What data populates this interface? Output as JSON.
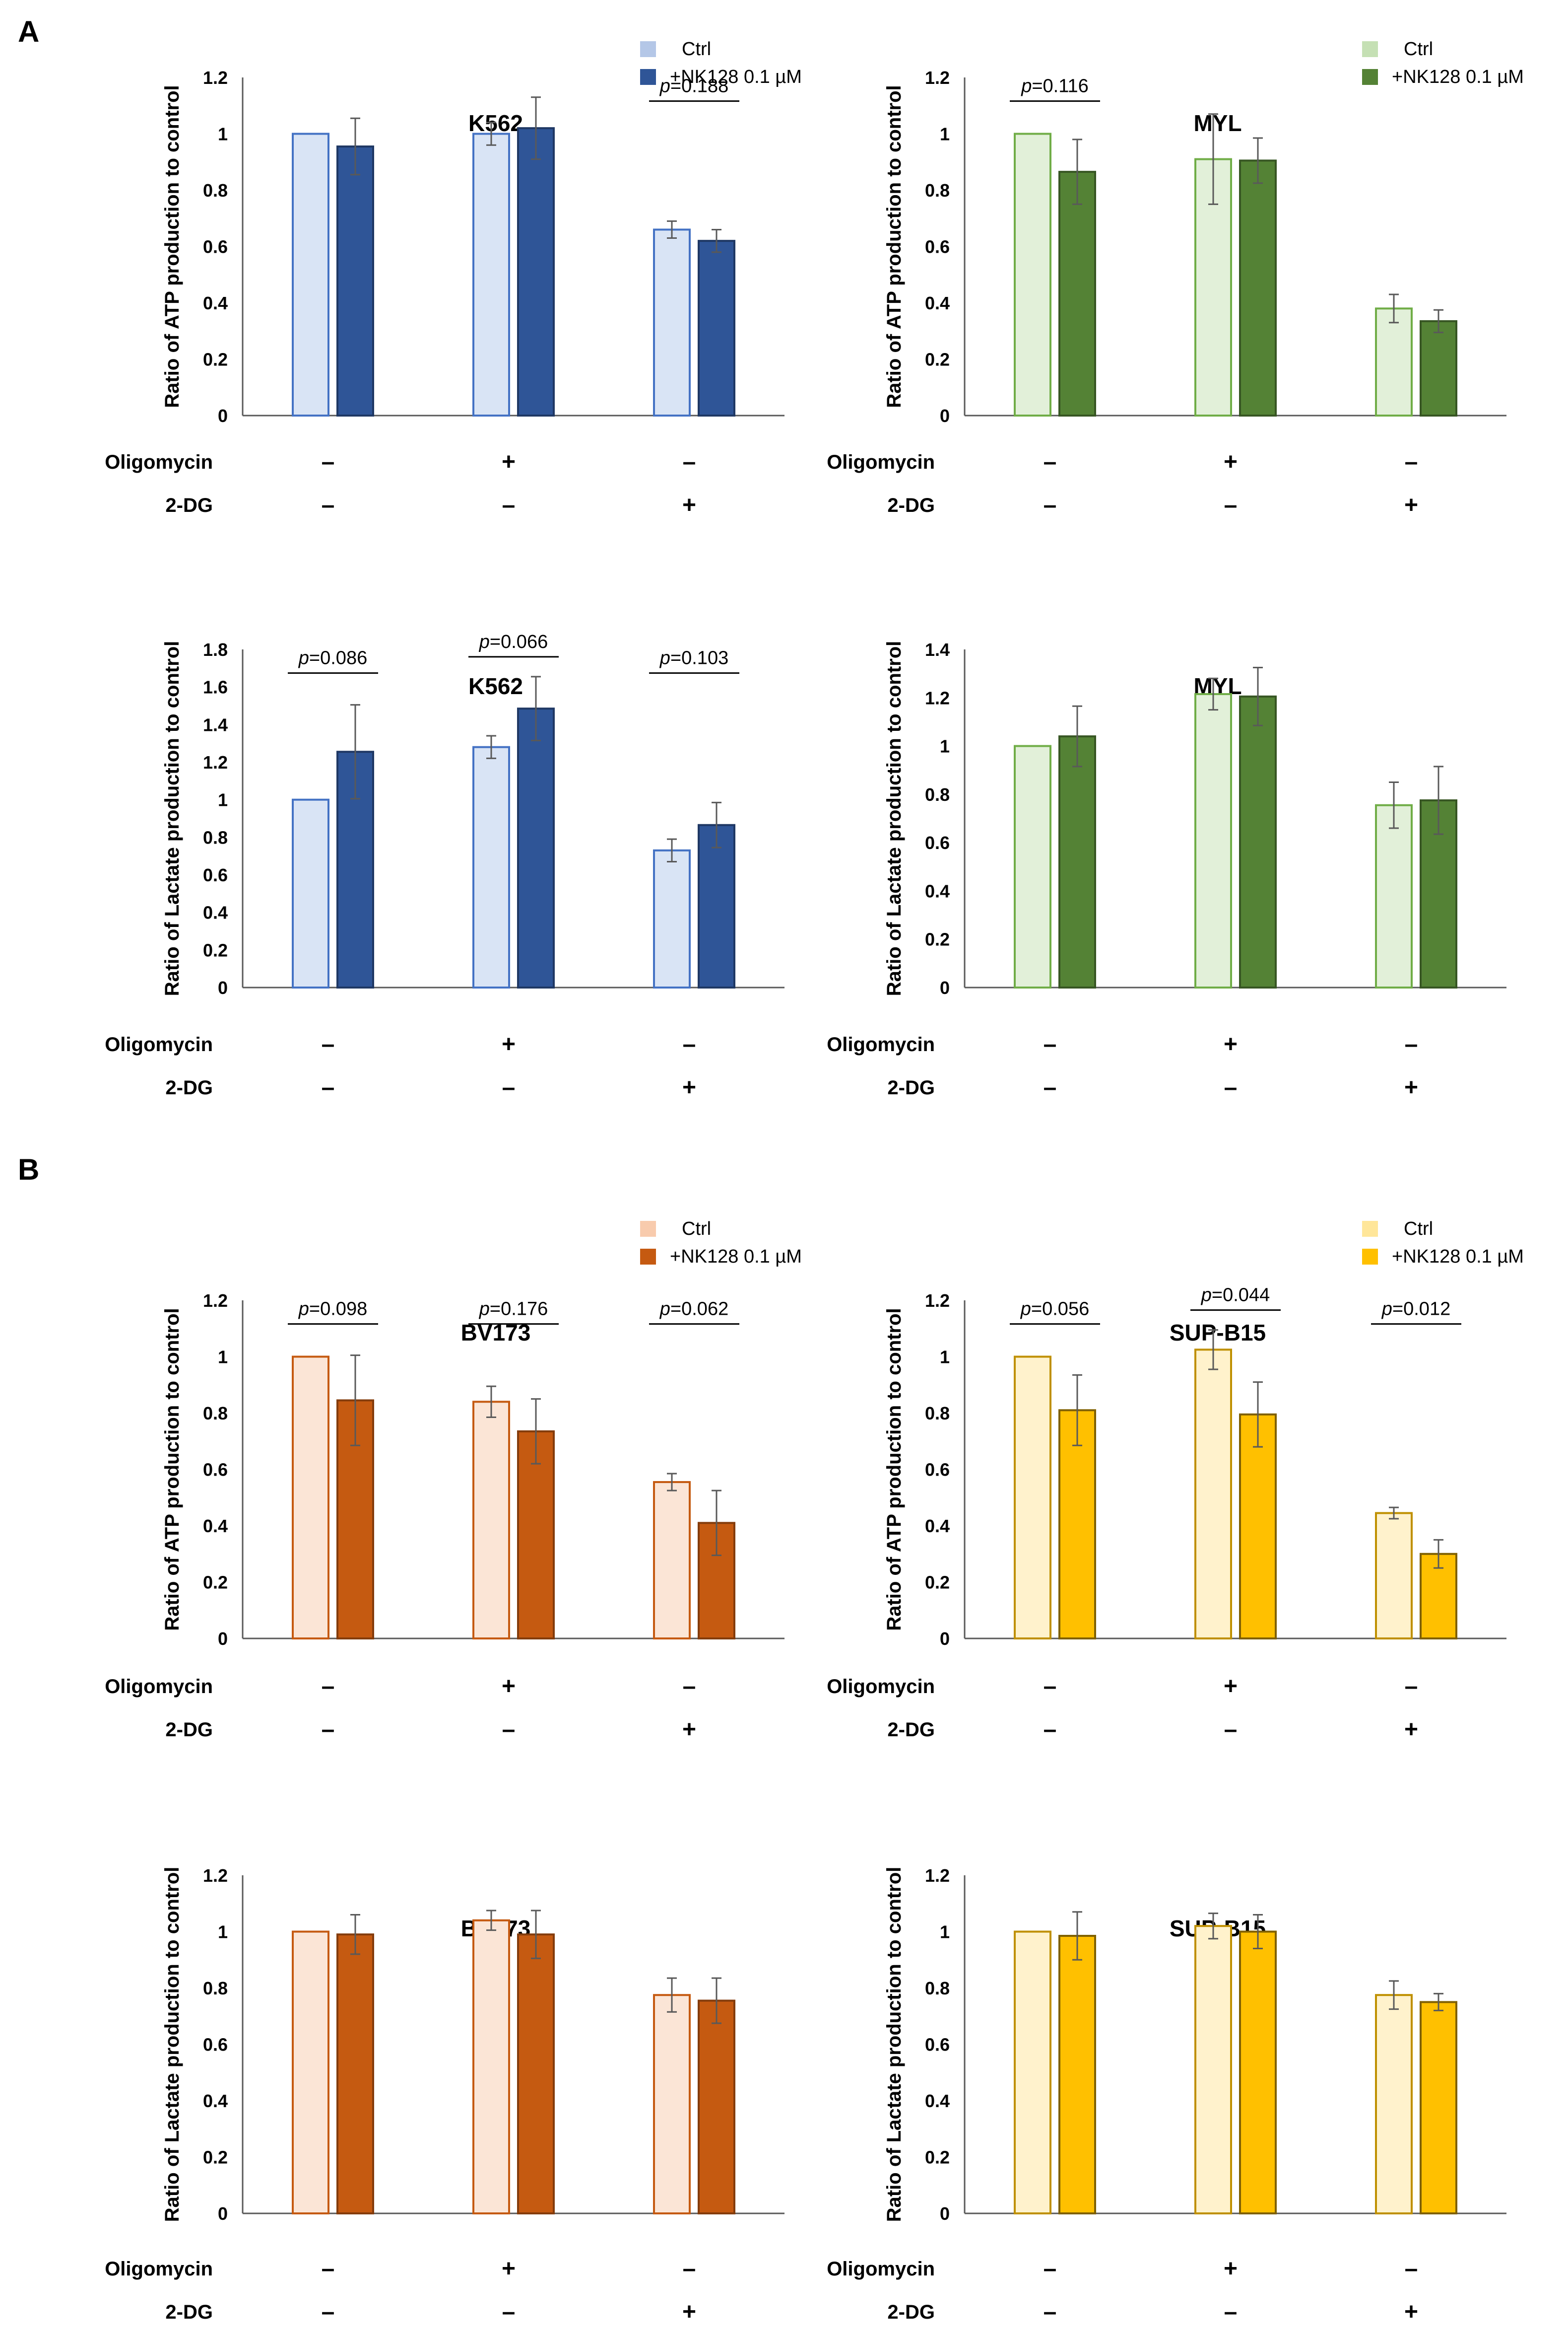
{
  "panel_labels": [
    "A",
    "B"
  ],
  "treatments": {
    "row_labels": [
      "Oligomycin",
      "2-DG"
    ],
    "oligomycin": [
      "–",
      "+",
      "–"
    ],
    "dg": [
      "–",
      "–",
      "+"
    ]
  },
  "legends": [
    {
      "ctrl": "Ctrl",
      "nk": "+NK128 0.1 µM"
    },
    {
      "ctrl": "Ctrl",
      "nk": "+NK128 0.1 µM"
    },
    {
      "ctrl": "Ctrl",
      "nk": "+NK128 0.1 µM"
    },
    {
      "ctrl": "Ctrl",
      "nk": "+NK128 0.1 µM"
    }
  ],
  "colors": {
    "blue": {
      "fill_light": "#d9e4f5",
      "edge_light": "#4472c4",
      "fill_dark": "#2f5597",
      "edge_dark": "#1f3864",
      "legend_light": "#b4c7e7"
    },
    "green": {
      "fill_light": "#e2f0d9",
      "edge_light": "#70ad47",
      "fill_dark": "#548235",
      "edge_dark": "#375623",
      "legend_light": "#c5e0b4"
    },
    "orange": {
      "fill_light": "#fbe5d6",
      "edge_light": "#c55a11",
      "fill_dark": "#c55a11",
      "edge_dark": "#843c0c",
      "legend_light": "#f8cbad"
    },
    "yellow": {
      "fill_light": "#fff2cc",
      "edge_light": "#bf9000",
      "fill_dark": "#ffc000",
      "edge_dark": "#7f6000",
      "legend_light": "#ffe699"
    }
  },
  "chart_data": [
    {
      "type": "bar",
      "title": "K562",
      "ylabel": "Ratio of ATP production to control",
      "color": "blue",
      "ylim": [
        0,
        1.2
      ],
      "yticks": [
        "0",
        "0.2",
        "0.4",
        "0.6",
        "0.8",
        "1",
        "1.2"
      ],
      "series": [
        {
          "name": "Ctrl",
          "values": [
            1.0,
            1.0,
            0.66
          ],
          "errors": [
            0.0,
            0.04,
            0.03
          ]
        },
        {
          "name": "+NK128 0.1 µM",
          "values": [
            0.955,
            1.02,
            0.62
          ],
          "errors": [
            0.1,
            0.11,
            0.04
          ]
        }
      ],
      "pvalues": [
        null,
        null,
        "p=0.188"
      ]
    },
    {
      "type": "bar",
      "title": "MYL",
      "ylabel": "Ratio of ATP production to control",
      "color": "green",
      "ylim": [
        0,
        1.2
      ],
      "yticks": [
        "0",
        "0.2",
        "0.4",
        "0.6",
        "0.8",
        "1",
        "1.2"
      ],
      "series": [
        {
          "name": "Ctrl",
          "values": [
            1.0,
            0.91,
            0.38
          ],
          "errors": [
            0.0,
            0.16,
            0.05
          ]
        },
        {
          "name": "+NK128 0.1 µM",
          "values": [
            0.865,
            0.905,
            0.335
          ],
          "errors": [
            0.115,
            0.08,
            0.04
          ]
        }
      ],
      "pvalues": [
        "p=0.116",
        null,
        null
      ]
    },
    {
      "type": "bar",
      "title": "K562",
      "ylabel": "Ratio of Lactate production to control",
      "color": "blue",
      "ylim": [
        0,
        1.8
      ],
      "yticks": [
        "0",
        "0.2",
        "0.4",
        "0.6",
        "0.8",
        "1",
        "1.2",
        "1.4",
        "1.6",
        "1.8"
      ],
      "series": [
        {
          "name": "Ctrl",
          "values": [
            1.0,
            1.28,
            0.73
          ],
          "errors": [
            0.0,
            0.06,
            0.06
          ]
        },
        {
          "name": "+NK128 0.1 µM",
          "values": [
            1.255,
            1.485,
            0.865
          ],
          "errors": [
            0.25,
            0.17,
            0.12
          ]
        }
      ],
      "pvalues": [
        "p=0.086",
        "p=0.066",
        "p=0.103"
      ]
    },
    {
      "type": "bar",
      "title": "MYL",
      "ylabel": "Ratio of Lactate production to control",
      "color": "green",
      "ylim": [
        0,
        1.4
      ],
      "yticks": [
        "0",
        "0.2",
        "0.4",
        "0.6",
        "0.8",
        "1",
        "1.2",
        "1.4"
      ],
      "series": [
        {
          "name": "Ctrl",
          "values": [
            1.0,
            1.215,
            0.755
          ],
          "errors": [
            0.0,
            0.065,
            0.095
          ]
        },
        {
          "name": "+NK128 0.1 µM",
          "values": [
            1.04,
            1.205,
            0.775
          ],
          "errors": [
            0.125,
            0.12,
            0.14
          ]
        }
      ],
      "pvalues": [
        null,
        null,
        null
      ]
    },
    {
      "type": "bar",
      "title": "BV173",
      "ylabel": "Ratio of ATP production to control",
      "color": "orange",
      "ylim": [
        0,
        1.2
      ],
      "yticks": [
        "0",
        "0.2",
        "0.4",
        "0.6",
        "0.8",
        "1",
        "1.2"
      ],
      "series": [
        {
          "name": "Ctrl",
          "values": [
            1.0,
            0.84,
            0.555
          ],
          "errors": [
            0.0,
            0.055,
            0.03
          ]
        },
        {
          "name": "+NK128 0.1 µM",
          "values": [
            0.845,
            0.735,
            0.41
          ],
          "errors": [
            0.16,
            0.115,
            0.115
          ]
        }
      ],
      "pvalues": [
        "p=0.098",
        "p=0.176",
        "p=0.062"
      ]
    },
    {
      "type": "bar",
      "title": "SUP-B15",
      "ylabel": "Ratio of ATP production to control",
      "color": "yellow",
      "ylim": [
        0,
        1.2
      ],
      "yticks": [
        "0",
        "0.2",
        "0.4",
        "0.6",
        "0.8",
        "1",
        "1.2"
      ],
      "series": [
        {
          "name": "Ctrl",
          "values": [
            1.0,
            1.025,
            0.445
          ],
          "errors": [
            0.0,
            0.07,
            0.02
          ]
        },
        {
          "name": "+NK128 0.1 µM",
          "values": [
            0.81,
            0.795,
            0.3
          ],
          "errors": [
            0.125,
            0.115,
            0.05
          ]
        }
      ],
      "pvalues": [
        "p=0.056",
        "p=0.044",
        "p=0.012"
      ]
    },
    {
      "type": "bar",
      "title": "BV173",
      "ylabel": "Ratio of Lactate production to control",
      "color": "orange",
      "ylim": [
        0,
        1.2
      ],
      "yticks": [
        "0",
        "0.2",
        "0.4",
        "0.6",
        "0.8",
        "1",
        "1.2"
      ],
      "series": [
        {
          "name": "Ctrl",
          "values": [
            1.0,
            1.04,
            0.775
          ],
          "errors": [
            0.0,
            0.035,
            0.06
          ]
        },
        {
          "name": "+NK128 0.1 µM",
          "values": [
            0.99,
            0.99,
            0.755
          ],
          "errors": [
            0.07,
            0.085,
            0.08
          ]
        }
      ],
      "pvalues": [
        null,
        null,
        null
      ]
    },
    {
      "type": "bar",
      "title": "SUP-B15",
      "ylabel": "Ratio of Lactate production to control",
      "color": "yellow",
      "ylim": [
        0,
        1.2
      ],
      "yticks": [
        "0",
        "0.2",
        "0.4",
        "0.6",
        "0.8",
        "1",
        "1.2"
      ],
      "series": [
        {
          "name": "Ctrl",
          "values": [
            1.0,
            1.02,
            0.775
          ],
          "errors": [
            0.0,
            0.045,
            0.05
          ]
        },
        {
          "name": "+NK128 0.1 µM",
          "values": [
            0.985,
            1.0,
            0.75
          ],
          "errors": [
            0.085,
            0.06,
            0.03
          ]
        }
      ],
      "pvalues": [
        null,
        null,
        null
      ]
    }
  ]
}
